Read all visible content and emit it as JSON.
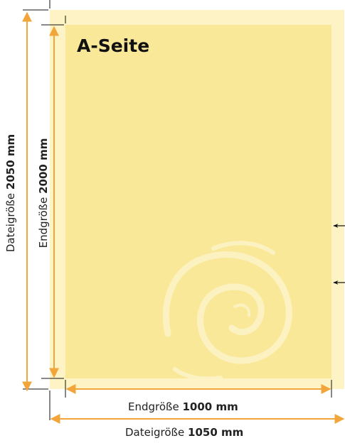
{
  "page": {
    "title": "A-Seite"
  },
  "dimensions": {
    "file_width": {
      "label": "Dateigröße",
      "value": "1050 mm"
    },
    "final_width": {
      "label": "Endgröße",
      "value": "1000 mm"
    },
    "file_height": {
      "label": "Dateigröße",
      "value": "2050 mm"
    },
    "final_height": {
      "label": "Endgröße",
      "value": "2000 mm"
    }
  },
  "colors": {
    "bleed_area": "#fdf3c4",
    "final_area": "#fae899",
    "dimension_line": "#f2a53a",
    "crop_mark": "#111111",
    "pointer_arrow": "#111111"
  },
  "decoration": "spiral-swirl-watermark"
}
